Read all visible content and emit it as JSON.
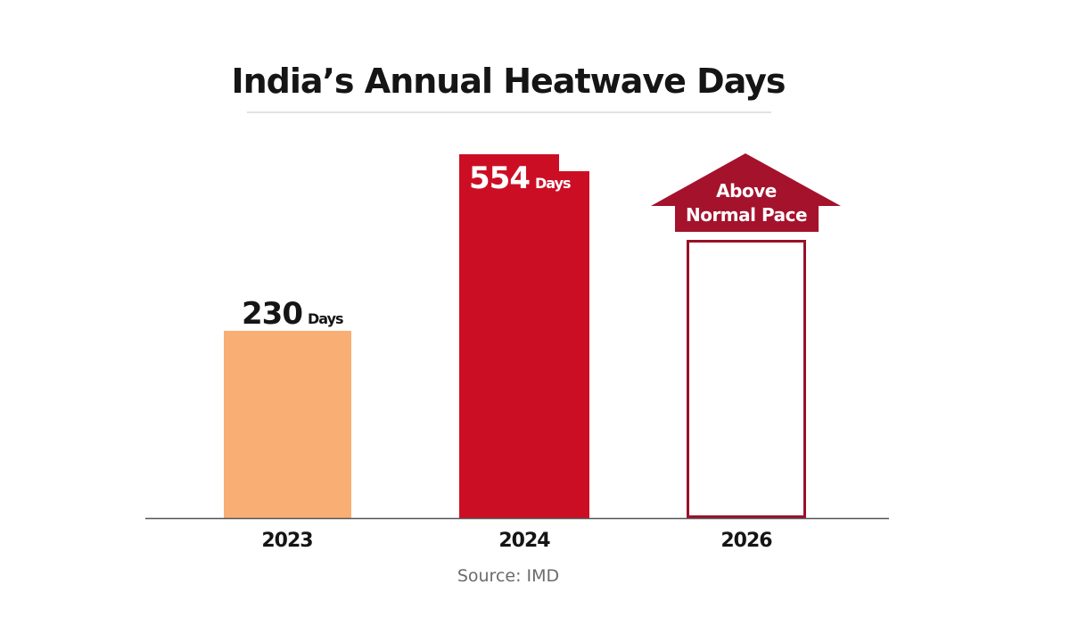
{
  "chart_data": {
    "type": "bar",
    "title": "India’s Annual Heatwave Days",
    "categories": [
      "2023",
      "2024",
      "2026"
    ],
    "values": [
      230,
      554,
      null
    ],
    "unit": "Days",
    "data_labels": [
      "230",
      "554",
      ""
    ],
    "annotation": {
      "line1": "Above",
      "line2": "Normal Pace"
    },
    "source": "Source: IMD",
    "colors": {
      "2023": "#f9ae74",
      "2024": "#cc0e24",
      "2026_outline": "#9b1028",
      "arrow": "#a5122c"
    },
    "grid": false,
    "legend": "none"
  }
}
